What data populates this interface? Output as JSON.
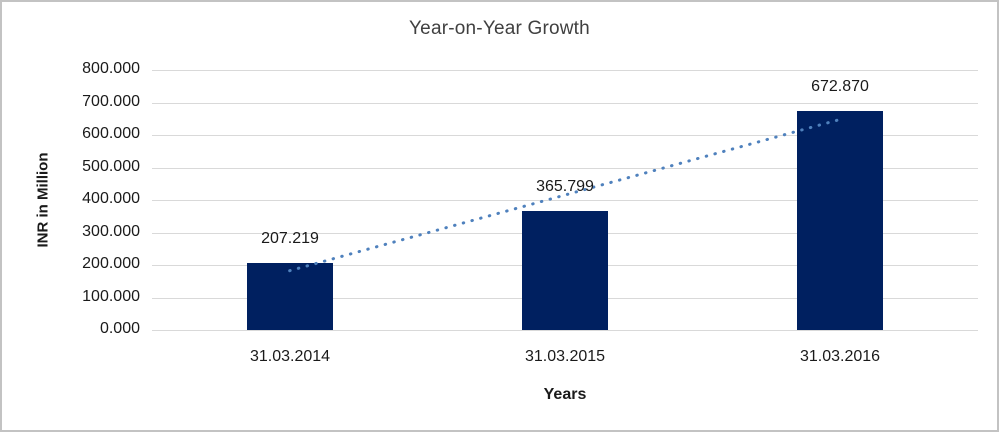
{
  "chart_data": {
    "type": "bar",
    "title": "Year-on-Year Growth",
    "xlabel": "Years",
    "ylabel": "INR in Million",
    "categories": [
      "31.03.2014",
      "31.03.2015",
      "31.03.2016"
    ],
    "values": [
      207.219,
      365.799,
      672.87
    ],
    "value_labels": [
      "207.219",
      "365.799",
      "672.870"
    ],
    "ylim": [
      0,
      800
    ],
    "ytick_step": 100,
    "ytick_labels": [
      "0.000",
      "100.000",
      "200.000",
      "300.000",
      "400.000",
      "500.000",
      "600.000",
      "700.000",
      "800.000"
    ],
    "grid": true,
    "legend_position": "none",
    "trendline": {
      "type": "linear",
      "style": "dotted",
      "start_value": 182.5,
      "end_value": 648.1,
      "color": "#4f81bd"
    },
    "colors": {
      "bar": "#002060",
      "gridline": "#d9d9d9",
      "axis_text": "#1a1a1a",
      "title_text": "#404040",
      "frame_border": "#c3c3c3",
      "background": "#ffffff"
    }
  }
}
